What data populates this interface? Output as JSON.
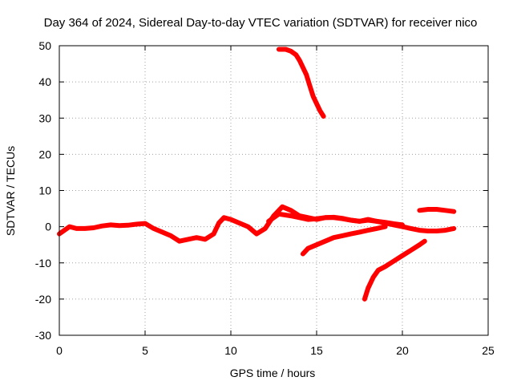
{
  "chart_data": {
    "type": "line",
    "title": "Day 364 of 2024, Sidereal Day-to-day VTEC variation (SDTVAR) for receiver nico",
    "xlabel": "GPS time / hours",
    "ylabel": "SDTVAR / TECUs",
    "xlim": [
      0,
      25
    ],
    "ylim": [
      -30,
      50
    ],
    "xticks": [
      0,
      5,
      10,
      15,
      20,
      25
    ],
    "yticks": [
      -30,
      -20,
      -10,
      0,
      10,
      20,
      30,
      40,
      50
    ],
    "grid": true,
    "series_color": "#ff0000",
    "series": [
      {
        "name": "main-track",
        "x": [
          0,
          0.3,
          0.6,
          1,
          1.5,
          2,
          2.5,
          3,
          3.5,
          4,
          4.5,
          5,
          5.5,
          6,
          6.5,
          7,
          7.5,
          8,
          8.5,
          9,
          9.3,
          9.6,
          10,
          10.5,
          11,
          11.5,
          12,
          12.5,
          13,
          13.5,
          14,
          14.5,
          15,
          15.5,
          16,
          16.5,
          17,
          17.5,
          18,
          18.5,
          19,
          19.5,
          20,
          20.5,
          21,
          21.5,
          22,
          22.5,
          23
        ],
        "y": [
          -2,
          -1,
          0,
          -0.5,
          -0.5,
          -0.3,
          0.2,
          0.5,
          0.3,
          0.4,
          0.7,
          0.9,
          -0.5,
          -1.5,
          -2.5,
          -4,
          -3.5,
          -3,
          -3.5,
          -2,
          1,
          2.5,
          2,
          1,
          0,
          -2,
          -0.5,
          3,
          5.5,
          4.5,
          3,
          2.5,
          2,
          2.5,
          2.5,
          2.2,
          1.8,
          1.5,
          2,
          1.5,
          1,
          0.5,
          0,
          -0.5,
          -1,
          -1.2,
          -1.2,
          -1,
          -0.5
        ]
      },
      {
        "name": "upper-branch",
        "x": [
          12.2,
          12.8,
          13.5,
          14,
          14.5,
          15,
          15.5,
          16,
          16.5,
          17,
          17.5,
          18,
          18.5,
          19,
          19.5,
          20
        ],
        "y": [
          1.5,
          3.5,
          3,
          2.5,
          2,
          2.2,
          2.5,
          2.6,
          2.3,
          1.8,
          1.5,
          1.8,
          1.5,
          1.2,
          0.8,
          0.5
        ]
      },
      {
        "name": "lower-branch",
        "x": [
          14.2,
          14.5,
          15,
          15.5,
          16,
          16.5,
          17,
          17.5,
          18,
          18.5,
          19
        ],
        "y": [
          -7.5,
          -6,
          -5,
          -4,
          -3,
          -2.5,
          -2,
          -1.5,
          -1,
          -0.5,
          0
        ]
      },
      {
        "name": "rising-branch",
        "x": [
          17.8,
          18,
          18.3,
          18.6,
          19,
          19.5,
          20,
          20.5,
          21,
          21.3
        ],
        "y": [
          -20,
          -17,
          -14,
          -12,
          -11,
          -9.5,
          -8,
          -6.5,
          -5,
          -4
        ]
      },
      {
        "name": "late-segment",
        "x": [
          21,
          21.5,
          22,
          22.5,
          23
        ],
        "y": [
          4.5,
          4.8,
          4.8,
          4.5,
          4.2
        ]
      },
      {
        "name": "high-segment",
        "x": [
          12.8,
          13.2,
          13.5,
          13.8,
          14,
          14.2,
          14.4,
          14.6,
          14.8,
          15,
          15.2,
          15.4
        ],
        "y": [
          49,
          49,
          48.5,
          47.5,
          46,
          44,
          42,
          39,
          36,
          34,
          32,
          30.5
        ]
      }
    ]
  }
}
